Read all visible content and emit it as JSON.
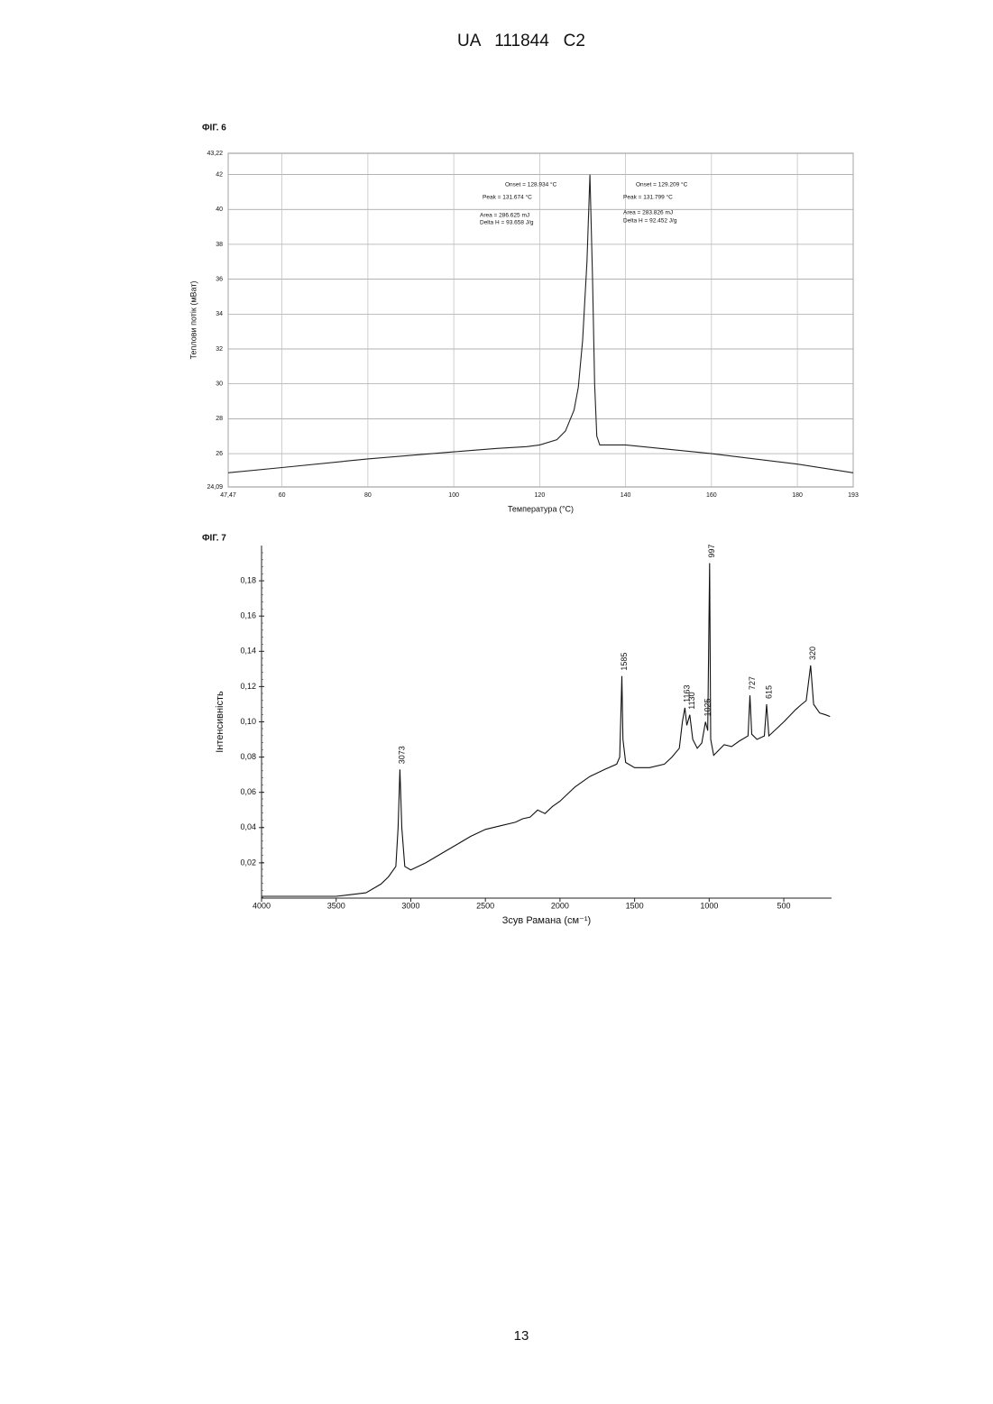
{
  "header": "UA   111844   C2",
  "footer": "13",
  "chart_data": [
    {
      "type": "line",
      "title": "ФІГ. 6",
      "xlabel": "Температура (°C)",
      "ylabel": "Теплови потік (мВат)",
      "x": [
        47.47,
        60,
        80,
        100,
        110,
        117,
        120,
        124,
        126,
        128,
        129,
        130,
        131,
        131.7,
        132.3,
        132.8,
        133.3,
        134,
        140,
        160,
        180,
        193
      ],
      "values": [
        24.9,
        25.2,
        25.7,
        26.1,
        26.3,
        26.4,
        26.5,
        26.8,
        27.3,
        28.5,
        29.8,
        32.5,
        37,
        42,
        36,
        30,
        27,
        26.5,
        26.5,
        26,
        25.4,
        24.9
      ],
      "color": "#222222",
      "xlim": [
        47.47,
        193
      ],
      "ylim": [
        24.09,
        43.22
      ],
      "xticks": [
        {
          "value": 47.47,
          "label": "47,47"
        },
        60,
        80,
        100,
        120,
        140,
        160,
        180,
        193
      ],
      "yticks": [
        {
          "value": 24.09,
          "label": "24,09"
        },
        26,
        28,
        30,
        32,
        34,
        36,
        38,
        40,
        42,
        {
          "value": 43.22,
          "label": "43,22"
        }
      ],
      "grid": true,
      "annotations": [
        "Onset = 128.934 °C",
        "Peak = 131.674 °C",
        "Area = 286.625 mJ",
        "Delta H = 93.658 J/g",
        "Onset = 129.209 °C",
        "Peak = 131.799 °C",
        "Area = 283.826 mJ",
        "Delta H = 92.452 J/g"
      ]
    },
    {
      "type": "line",
      "title": "ФІГ. 7",
      "xlabel": "Зсув Рамана (см⁻¹)",
      "ylabel": "Інтенсивність",
      "x": [
        4000,
        3500,
        3300,
        3200,
        3150,
        3100,
        3085,
        3073,
        3060,
        3040,
        3000,
        2900,
        2800,
        2700,
        2600,
        2500,
        2400,
        2300,
        2250,
        2200,
        2150,
        2100,
        2050,
        2000,
        1900,
        1800,
        1700,
        1620,
        1600,
        1590,
        1585,
        1578,
        1560,
        1500,
        1400,
        1300,
        1250,
        1200,
        1180,
        1163,
        1150,
        1130,
        1110,
        1080,
        1050,
        1025,
        1010,
        997,
        990,
        970,
        900,
        850,
        800,
        740,
        727,
        715,
        680,
        630,
        615,
        600,
        500,
        420,
        380,
        350,
        320,
        300,
        260,
        220,
        190
      ],
      "values": [
        0.001,
        0.001,
        0.003,
        0.008,
        0.012,
        0.018,
        0.04,
        0.073,
        0.04,
        0.018,
        0.016,
        0.02,
        0.025,
        0.03,
        0.035,
        0.039,
        0.041,
        0.043,
        0.045,
        0.046,
        0.05,
        0.048,
        0.052,
        0.055,
        0.063,
        0.069,
        0.073,
        0.076,
        0.08,
        0.11,
        0.126,
        0.09,
        0.077,
        0.074,
        0.074,
        0.076,
        0.08,
        0.085,
        0.1,
        0.108,
        0.098,
        0.104,
        0.09,
        0.085,
        0.088,
        0.1,
        0.095,
        0.19,
        0.09,
        0.081,
        0.087,
        0.086,
        0.089,
        0.092,
        0.115,
        0.093,
        0.09,
        0.092,
        0.11,
        0.092,
        0.1,
        0.107,
        0.11,
        0.112,
        0.132,
        0.11,
        0.105,
        0.104,
        0.103
      ],
      "color": "#111111",
      "xlim": [
        4000,
        180
      ],
      "ylim": [
        0,
        0.2
      ],
      "xticks": [
        4000,
        3500,
        3000,
        2500,
        2000,
        1500,
        1000,
        500
      ],
      "yticks": [
        {
          "value": 0.02,
          "label": "0,02"
        },
        {
          "value": 0.04,
          "label": "0,04"
        },
        {
          "value": 0.06,
          "label": "0,06"
        },
        {
          "value": 0.08,
          "label": "0,08"
        },
        {
          "value": 0.1,
          "label": "0,10"
        },
        {
          "value": 0.12,
          "label": "0,12"
        },
        {
          "value": 0.14,
          "label": "0,14"
        },
        {
          "value": 0.16,
          "label": "0,16"
        },
        {
          "value": 0.18,
          "label": "0,18"
        }
      ],
      "grid": false,
      "peak_labels": [
        3073,
        1585,
        1163,
        1130,
        1025,
        997,
        727,
        615,
        320
      ]
    }
  ]
}
